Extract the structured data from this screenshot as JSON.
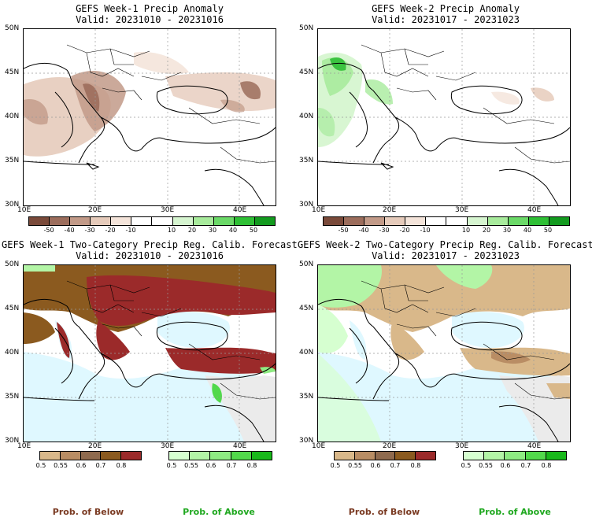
{
  "panels": [
    {
      "title": "GEFS Week-1 Precip Anomaly",
      "valid": "Valid: 20231010 - 20231016",
      "lat_labels": [
        "50N",
        "45N",
        "40N",
        "35N",
        "30N"
      ],
      "lon_labels": [
        "10E",
        "20E",
        "30E",
        "40E"
      ],
      "colorbar": {
        "colors": [
          "#7a4a3a",
          "#9c6d5c",
          "#c29a88",
          "#e6cbbb",
          "#f4e4da",
          "#ffffff",
          "#ffffff",
          "#d6f5d0",
          "#a8eb9c",
          "#6bd968",
          "#2fbf35",
          "#139a1f"
        ],
        "ticks": [
          "-50",
          "-40",
          "-30",
          "-20",
          "-10",
          "10",
          "20",
          "30",
          "40",
          "50"
        ]
      }
    },
    {
      "title": "GEFS Week-2 Precip Anomaly",
      "valid": "Valid: 20231017 - 20231023",
      "lat_labels": [
        "50N",
        "45N",
        "40N",
        "35N",
        "30N"
      ],
      "lon_labels": [
        "10E",
        "20E",
        "30E",
        "40E"
      ],
      "colorbar": {
        "colors": [
          "#7a4a3a",
          "#9c6d5c",
          "#c29a88",
          "#e6cbbb",
          "#f4e4da",
          "#ffffff",
          "#ffffff",
          "#d6f5d0",
          "#a8eb9c",
          "#6bd968",
          "#2fbf35",
          "#139a1f"
        ],
        "ticks": [
          "-50",
          "-40",
          "-30",
          "-20",
          "-10",
          "10",
          "20",
          "30",
          "40",
          "50"
        ]
      }
    },
    {
      "title": "GEFS Week-1 Two-Category Precip Reg. Calib. Forecast",
      "valid": "Valid: 20231010 - 20231016",
      "lat_labels": [
        "50N",
        "45N",
        "40N",
        "35N",
        "30N"
      ],
      "lon_labels": [
        "10E",
        "20E",
        "30E",
        "40E"
      ],
      "below_bar": {
        "colors": [
          "#d9b88a",
          "#b98d64",
          "#8f6a4e",
          "#8b5a1f",
          "#9b2a2a"
        ],
        "ticks": [
          "0.5",
          "0.55",
          "0.6",
          "0.7",
          "0.8"
        ]
      },
      "above_bar": {
        "colors": [
          "#d6ffd0",
          "#b3f5a6",
          "#8eeb82",
          "#52d94b",
          "#19b91b"
        ],
        "ticks": [
          "0.5",
          "0.55",
          "0.6",
          "0.7",
          "0.8"
        ]
      }
    },
    {
      "title": "GEFS Week-2 Two-Category Precip Reg. Calib. Forecast",
      "valid": "Valid: 20231017 - 20231023",
      "lat_labels": [
        "50N",
        "45N",
        "40N",
        "35N",
        "30N"
      ],
      "lon_labels": [
        "10E",
        "20E",
        "30E",
        "40E"
      ],
      "below_bar": {
        "colors": [
          "#d9b88a",
          "#b98d64",
          "#8f6a4e",
          "#8b5a1f",
          "#9b2a2a"
        ],
        "ticks": [
          "0.5",
          "0.55",
          "0.6",
          "0.7",
          "0.8"
        ]
      },
      "above_bar": {
        "colors": [
          "#d6ffd0",
          "#b3f5a6",
          "#8eeb82",
          "#52d94b",
          "#19b91b"
        ],
        "ticks": [
          "0.5",
          "0.55",
          "0.6",
          "0.7",
          "0.8"
        ]
      }
    }
  ],
  "footer": {
    "below_label": "Prob. of Below",
    "above_label": "Prob. of Above",
    "below_color": "#7a3a22",
    "above_color": "#1fa81f"
  }
}
